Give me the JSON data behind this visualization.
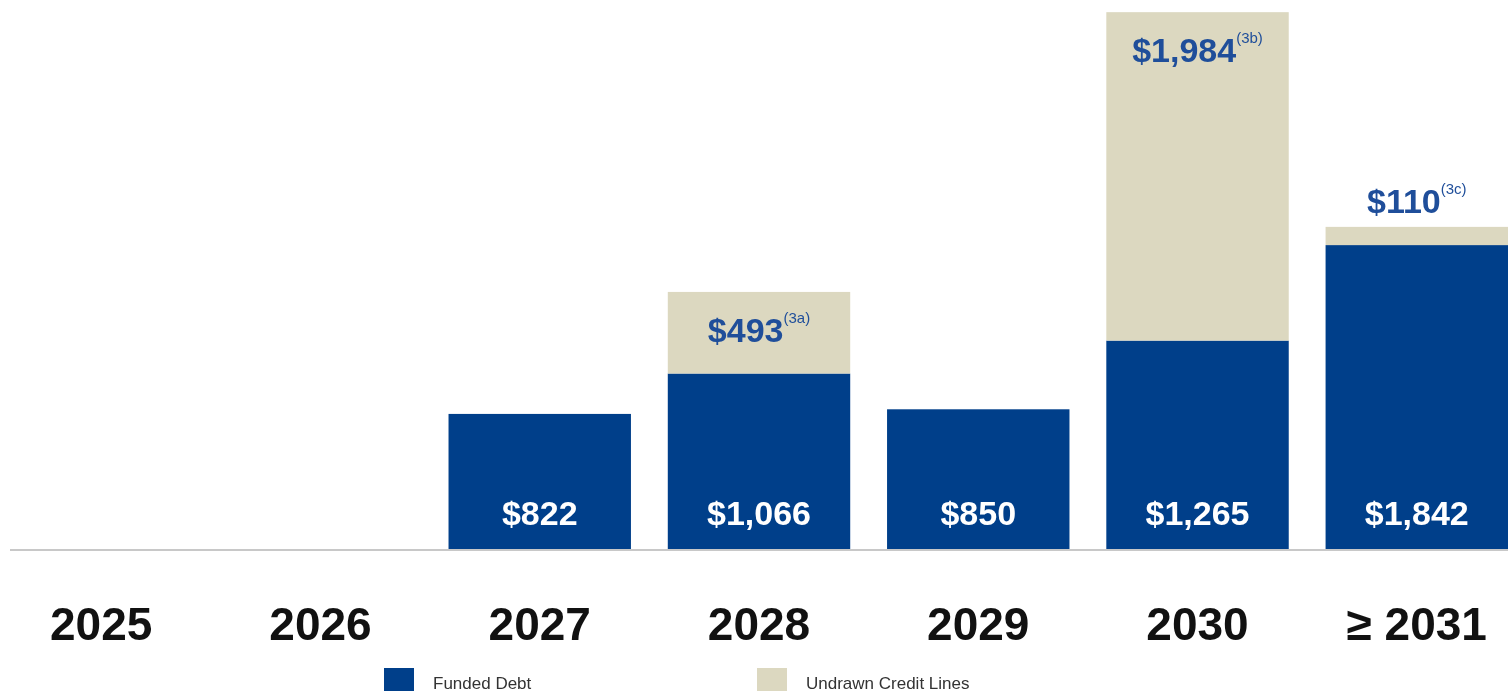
{
  "chart_data": {
    "type": "bar",
    "stacked": true,
    "categories": [
      "2025",
      "2026",
      "2027",
      "2028",
      "2029",
      "2030",
      "≥ 2031"
    ],
    "ylim": [
      0,
      3250
    ],
    "legend": "bottom",
    "series": [
      {
        "name": "Funded Debt",
        "color": "#003f8a",
        "values": [
          null,
          null,
          822,
          1066,
          850,
          1265,
          1842
        ],
        "value_labels": [
          null,
          null,
          "$822",
          "$1,066",
          "$850",
          "$1,265",
          "$1,842"
        ]
      },
      {
        "name": "Undrawn Credit Lines",
        "color": "#dcd8c0",
        "values": [
          null,
          null,
          null,
          493,
          null,
          1984,
          110
        ],
        "value_labels": [
          null,
          null,
          null,
          "$493$^{(3a)}$",
          null,
          "$1,984$^{(3b)}$",
          "$110$^{(3c)}$"
        ]
      }
    ]
  }
}
